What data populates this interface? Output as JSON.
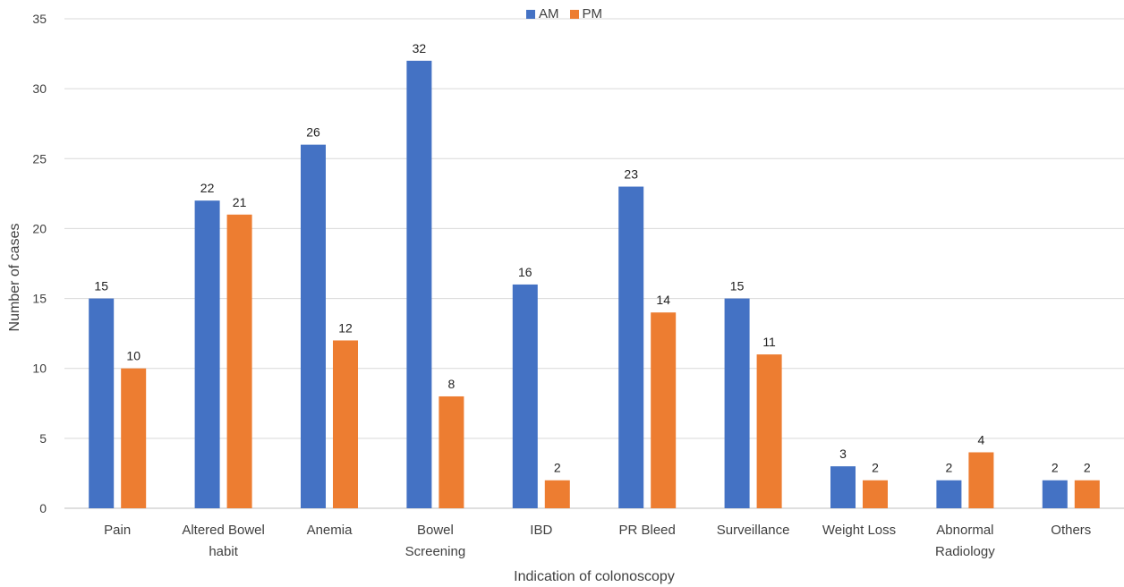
{
  "chart_data": {
    "type": "bar",
    "title": "",
    "xlabel": "Indication of colonoscopy",
    "ylabel": "Number of cases",
    "ylim": [
      0,
      35
    ],
    "yticks": [
      0,
      5,
      10,
      15,
      20,
      25,
      30,
      35
    ],
    "grid": true,
    "legend_position": "top-center",
    "categories": [
      [
        "Pain"
      ],
      [
        "Altered Bowel",
        "habit"
      ],
      [
        "Anemia"
      ],
      [
        "Bowel",
        "Screening"
      ],
      [
        "IBD"
      ],
      [
        "PR Bleed"
      ],
      [
        "Surveillance"
      ],
      [
        "Weight Loss"
      ],
      [
        "Abnormal",
        "Radiology"
      ],
      [
        "Others"
      ]
    ],
    "series": [
      {
        "name": "AM",
        "color": "#4472C4",
        "values": [
          15,
          22,
          26,
          32,
          16,
          23,
          15,
          3,
          2,
          2
        ]
      },
      {
        "name": "PM",
        "color": "#ED7D31",
        "values": [
          10,
          21,
          12,
          8,
          2,
          14,
          11,
          2,
          4,
          2
        ]
      }
    ]
  }
}
